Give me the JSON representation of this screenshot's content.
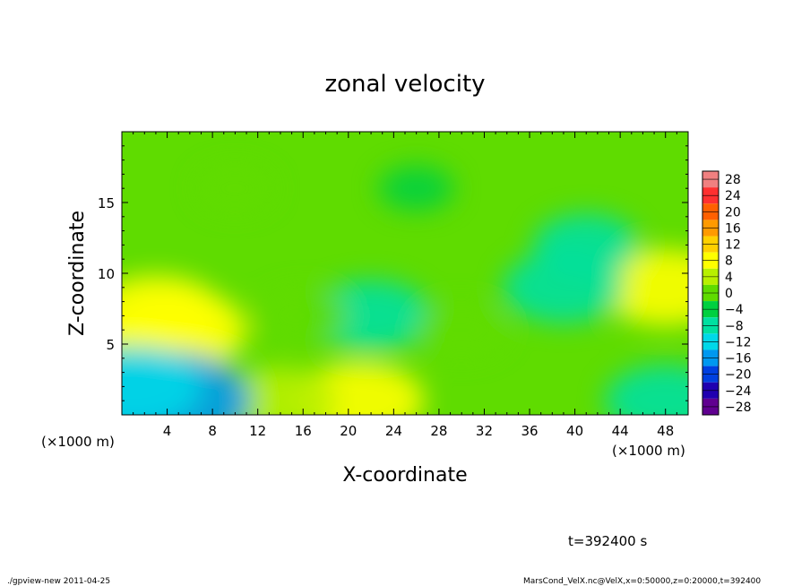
{
  "chart_data": {
    "type": "heatmap",
    "title": "zonal velocity",
    "xlabel": "X-coordinate",
    "ylabel": "Z-coordinate",
    "x_unit_left": "(×1000 m)",
    "x_unit_right": "(×1000 m)",
    "xlim": [
      0,
      50
    ],
    "ylim": [
      0,
      20
    ],
    "x_ticks": [
      "4",
      "8",
      "12",
      "16",
      "20",
      "24",
      "28",
      "32",
      "36",
      "40",
      "44",
      "48"
    ],
    "y_ticks": [
      "5",
      "10",
      "15"
    ],
    "colorbar": {
      "levels": [
        "28",
        "24",
        "20",
        "16",
        "12",
        "8",
        "4",
        "0",
        "−4",
        "−8",
        "−12",
        "−16",
        "−20",
        "−24",
        "−28"
      ],
      "colors": [
        "#f08080",
        "#ff3030",
        "#ff6000",
        "#ff9a00",
        "#ffd000",
        "#ffff00",
        "#b8f000",
        "#5fdc00",
        "#00d040",
        "#00e0a0",
        "#00d8e8",
        "#0098f0",
        "#0040e0",
        "#2000b0",
        "#600090"
      ]
    },
    "field_samples": [
      {
        "x": 3,
        "z": 7,
        "value": 9
      },
      {
        "x": 5,
        "z": 6,
        "value": 9
      },
      {
        "x": 48,
        "z": 9,
        "value": 8
      },
      {
        "x": 21,
        "z": 1,
        "value": 8
      },
      {
        "x": 14,
        "z": 1,
        "value": 6
      },
      {
        "x": 4,
        "z": 1,
        "value": -13
      },
      {
        "x": 1,
        "z": 2,
        "value": -9
      },
      {
        "x": 22,
        "z": 7,
        "value": -7
      },
      {
        "x": 39,
        "z": 9,
        "value": -7
      },
      {
        "x": 41,
        "z": 12,
        "value": -5
      },
      {
        "x": 30,
        "z": 6,
        "value": 3
      },
      {
        "x": 16,
        "z": 7,
        "value": 3
      },
      {
        "x": 48,
        "z": 1,
        "value": -7
      },
      {
        "x": 26,
        "z": 16,
        "value": -1
      },
      {
        "x": 10,
        "z": 16,
        "value": 1
      }
    ]
  },
  "annotations": {
    "time": "t=392400 s",
    "footer_left": "./gpview-new  2011-04-25",
    "footer_right": "MarsCond_VelX.nc@VelX,x=0:50000,z=0:20000,t=392400"
  }
}
